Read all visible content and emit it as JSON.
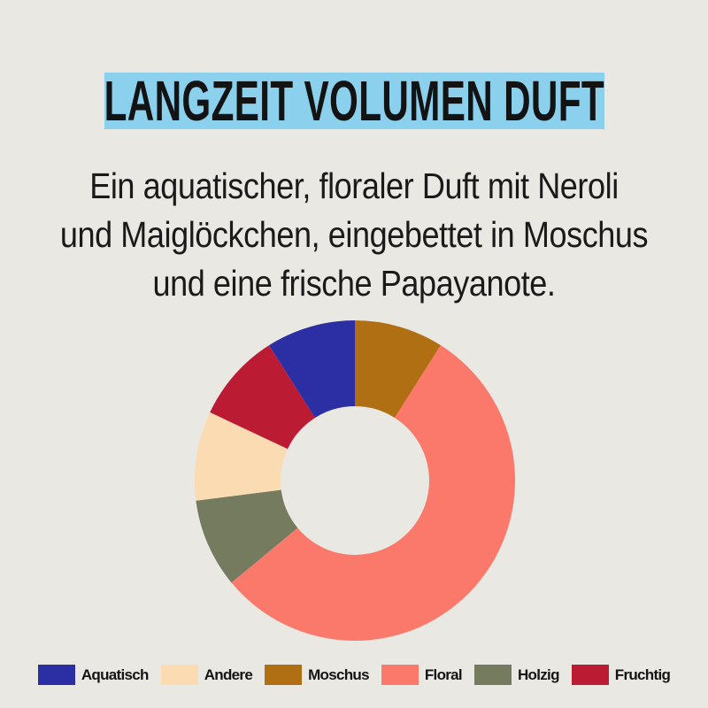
{
  "page": {
    "background": "#eae8e3"
  },
  "title": {
    "text": "LANGZEIT VOLUMEN DUFT",
    "highlight_color": "#8bd1ee",
    "text_color": "#131313"
  },
  "description": {
    "lines": [
      "Ein aquatischer, floraler Duft mit Neroli",
      "und Maiglöckchen, eingebettet in Moschus",
      "und eine frische Papayanote."
    ]
  },
  "chart_data": {
    "type": "pie",
    "subtype": "donut",
    "start_angle_deg": 0,
    "direction": "clockwise",
    "inner_radius_ratio": 0.464,
    "hole_color": "#eae8e3",
    "segments": [
      {
        "label": "Moschus",
        "value_pct": 9,
        "color": "#b06f12"
      },
      {
        "label": "Floral",
        "value_pct": 55,
        "color": "#fb796a"
      },
      {
        "label": "Holzig",
        "value_pct": 9,
        "color": "#757b5f"
      },
      {
        "label": "Andere",
        "value_pct": 9,
        "color": "#fbdbb2"
      },
      {
        "label": "Fruchtig",
        "value_pct": 9,
        "color": "#bc1b34"
      },
      {
        "label": "Aquatisch",
        "value_pct": 9,
        "color": "#2c2fa4"
      }
    ],
    "legend": [
      {
        "label": "Aquatisch",
        "color": "#2c2fa4"
      },
      {
        "label": "Andere",
        "color": "#fbdbb2"
      },
      {
        "label": "Moschus",
        "color": "#b06f12"
      },
      {
        "label": "Floral",
        "color": "#fb796a"
      },
      {
        "label": "Holzig",
        "color": "#757b5f"
      },
      {
        "label": "Fruchtig",
        "color": "#bc1b34"
      }
    ],
    "legend_position": "bottom"
  }
}
